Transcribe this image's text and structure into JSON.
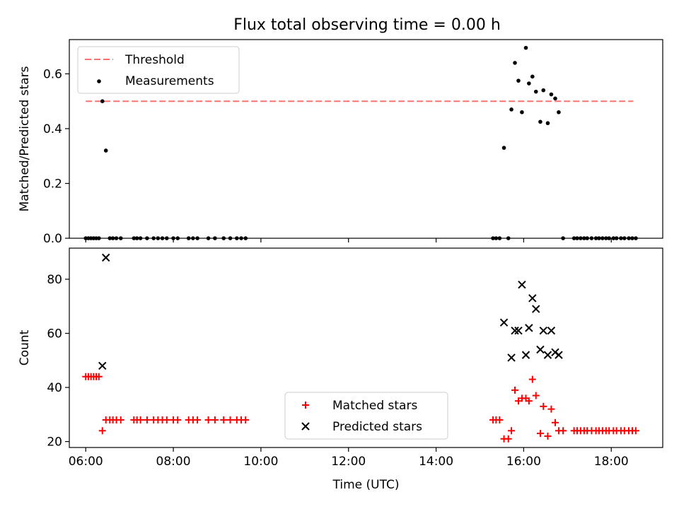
{
  "figure_title": "Flux total observing time = 0.00 h",
  "chart_data": [
    {
      "type": "scatter",
      "title": "Flux total observing time = 0.00 h",
      "xlabel": "",
      "ylabel": "Matched/Predicted stars",
      "xlim": [
        5.625,
        19.175
      ],
      "ylim": [
        0,
        0.725
      ],
      "xticks": [
        6,
        8,
        10,
        12,
        14,
        16,
        18
      ],
      "yticks": [
        0.0,
        0.2,
        0.4,
        0.6
      ],
      "ytick_labels": [
        "0.0",
        "0.2",
        "0.4",
        "0.6"
      ],
      "legend_position": "top-left",
      "threshold": {
        "name": "Threshold",
        "value": 0.5,
        "x_range": [
          6.0,
          18.5
        ],
        "color": "#ff7070"
      },
      "series": [
        {
          "name": "Measurements",
          "color": "#000000",
          "points": [
            [
              6.0,
              0
            ],
            [
              6.06,
              0
            ],
            [
              6.12,
              0
            ],
            [
              6.18,
              0
            ],
            [
              6.24,
              0
            ],
            [
              6.3,
              0
            ],
            [
              6.38,
              0.5
            ],
            [
              6.46,
              0.32
            ],
            [
              6.55,
              0
            ],
            [
              6.62,
              0
            ],
            [
              6.7,
              0
            ],
            [
              6.8,
              0
            ],
            [
              7.1,
              0
            ],
            [
              7.17,
              0
            ],
            [
              7.25,
              0
            ],
            [
              7.4,
              0
            ],
            [
              7.55,
              0
            ],
            [
              7.65,
              0
            ],
            [
              7.75,
              0
            ],
            [
              7.85,
              0
            ],
            [
              8.0,
              0
            ],
            [
              8.1,
              0
            ],
            [
              8.35,
              0
            ],
            [
              8.45,
              0
            ],
            [
              8.55,
              0
            ],
            [
              8.8,
              0
            ],
            [
              8.95,
              0
            ],
            [
              9.15,
              0
            ],
            [
              9.3,
              0
            ],
            [
              9.45,
              0
            ],
            [
              9.55,
              0
            ],
            [
              9.65,
              0
            ],
            [
              15.3,
              0
            ],
            [
              15.37,
              0
            ],
            [
              15.45,
              0
            ],
            [
              15.55,
              0.33
            ],
            [
              15.65,
              0
            ],
            [
              15.72,
              0.47
            ],
            [
              15.8,
              0.64
            ],
            [
              15.88,
              0.575
            ],
            [
              15.96,
              0.46
            ],
            [
              16.05,
              0.695
            ],
            [
              16.12,
              0.565
            ],
            [
              16.2,
              0.59
            ],
            [
              16.28,
              0.535
            ],
            [
              16.38,
              0.425
            ],
            [
              16.45,
              0.54
            ],
            [
              16.55,
              0.42
            ],
            [
              16.63,
              0.525
            ],
            [
              16.72,
              0.51
            ],
            [
              16.8,
              0.46
            ],
            [
              16.9,
              0
            ],
            [
              17.15,
              0
            ],
            [
              17.22,
              0
            ],
            [
              17.3,
              0
            ],
            [
              17.38,
              0
            ],
            [
              17.45,
              0
            ],
            [
              17.55,
              0
            ],
            [
              17.65,
              0
            ],
            [
              17.72,
              0
            ],
            [
              17.8,
              0
            ],
            [
              17.88,
              0
            ],
            [
              17.95,
              0
            ],
            [
              18.05,
              0
            ],
            [
              18.12,
              0
            ],
            [
              18.22,
              0
            ],
            [
              18.3,
              0
            ],
            [
              18.4,
              0
            ],
            [
              18.48,
              0
            ],
            [
              18.56,
              0
            ]
          ]
        }
      ]
    },
    {
      "type": "scatter",
      "title": "",
      "xlabel": "Time (UTC)",
      "ylabel": "Count",
      "xlim": [
        5.625,
        19.175
      ],
      "ylim": [
        17.8,
        91.5
      ],
      "xticks": [
        6,
        8,
        10,
        12,
        14,
        16,
        18
      ],
      "xtick_labels": [
        "06:00",
        "08:00",
        "10:00",
        "12:00",
        "14:00",
        "16:00",
        "18:00"
      ],
      "yticks": [
        20,
        40,
        60,
        80
      ],
      "ytick_labels": [
        "20",
        "40",
        "60",
        "80"
      ],
      "legend_position": "bottom-center",
      "series": [
        {
          "name": "Matched stars",
          "marker": "plus",
          "color": "#ff0000",
          "points": [
            [
              6.0,
              44
            ],
            [
              6.06,
              44
            ],
            [
              6.12,
              44
            ],
            [
              6.18,
              44
            ],
            [
              6.24,
              44
            ],
            [
              6.3,
              44
            ],
            [
              6.38,
              24
            ],
            [
              6.46,
              28
            ],
            [
              6.55,
              28
            ],
            [
              6.62,
              28
            ],
            [
              6.7,
              28
            ],
            [
              6.8,
              28
            ],
            [
              7.1,
              28
            ],
            [
              7.17,
              28
            ],
            [
              7.25,
              28
            ],
            [
              7.4,
              28
            ],
            [
              7.55,
              28
            ],
            [
              7.65,
              28
            ],
            [
              7.75,
              28
            ],
            [
              7.85,
              28
            ],
            [
              8.0,
              28
            ],
            [
              8.1,
              28
            ],
            [
              8.35,
              28
            ],
            [
              8.45,
              28
            ],
            [
              8.55,
              28
            ],
            [
              8.8,
              28
            ],
            [
              8.95,
              28
            ],
            [
              9.15,
              28
            ],
            [
              9.3,
              28
            ],
            [
              9.45,
              28
            ],
            [
              9.55,
              28
            ],
            [
              9.65,
              28
            ],
            [
              15.3,
              28
            ],
            [
              15.37,
              28
            ],
            [
              15.45,
              28
            ],
            [
              15.55,
              21
            ],
            [
              15.65,
              21
            ],
            [
              15.72,
              24
            ],
            [
              15.8,
              39
            ],
            [
              15.88,
              35
            ],
            [
              15.96,
              36
            ],
            [
              16.05,
              36
            ],
            [
              16.12,
              35
            ],
            [
              16.2,
              43
            ],
            [
              16.28,
              37
            ],
            [
              16.38,
              23
            ],
            [
              16.45,
              33
            ],
            [
              16.55,
              22
            ],
            [
              16.63,
              32
            ],
            [
              16.72,
              27
            ],
            [
              16.8,
              24
            ],
            [
              16.9,
              24
            ],
            [
              17.15,
              24
            ],
            [
              17.22,
              24
            ],
            [
              17.3,
              24
            ],
            [
              17.38,
              24
            ],
            [
              17.45,
              24
            ],
            [
              17.55,
              24
            ],
            [
              17.65,
              24
            ],
            [
              17.72,
              24
            ],
            [
              17.8,
              24
            ],
            [
              17.88,
              24
            ],
            [
              17.95,
              24
            ],
            [
              18.05,
              24
            ],
            [
              18.12,
              24
            ],
            [
              18.22,
              24
            ],
            [
              18.3,
              24
            ],
            [
              18.4,
              24
            ],
            [
              18.48,
              24
            ],
            [
              18.56,
              24
            ]
          ]
        },
        {
          "name": "Predicted stars",
          "marker": "x",
          "color": "#000000",
          "points": [
            [
              6.38,
              48
            ],
            [
              6.46,
              88
            ],
            [
              15.55,
              64
            ],
            [
              15.72,
              51
            ],
            [
              15.8,
              61
            ],
            [
              15.88,
              61
            ],
            [
              15.96,
              78
            ],
            [
              16.05,
              52
            ],
            [
              16.12,
              62
            ],
            [
              16.2,
              73
            ],
            [
              16.28,
              69
            ],
            [
              16.38,
              54
            ],
            [
              16.45,
              61
            ],
            [
              16.55,
              52
            ],
            [
              16.63,
              61
            ],
            [
              16.72,
              53
            ],
            [
              16.8,
              52
            ]
          ]
        }
      ]
    }
  ]
}
